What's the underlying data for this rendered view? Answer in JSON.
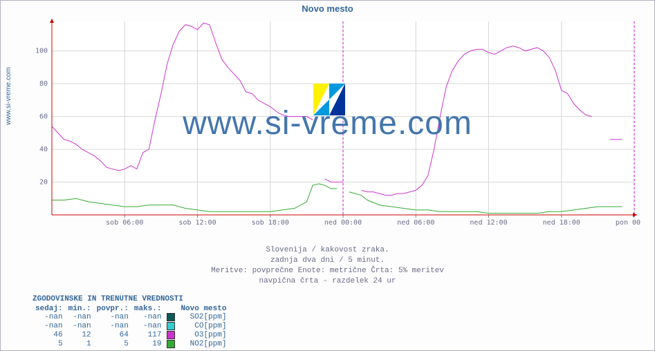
{
  "title": "Novo mesto",
  "y_rotated_label": "www.si-vreme.com",
  "caption_lines": [
    "Slovenija / kakovost zraka.",
    "zadnja dva dni / 5 minut.",
    "Meritve: povprečne  Enote: metrične  Črta: 5% meritev",
    "navpična črta - razdelek 24 ur"
  ],
  "watermark_text": "www.si-vreme.com",
  "chart": {
    "type": "line",
    "background_color": "#ffffff",
    "grid_color": "#d6d6d6",
    "axis_color": "#808080",
    "arrow_color": "#cc0000",
    "xlim_hours": [
      0,
      48
    ],
    "ylim": [
      0,
      118
    ],
    "y_ticks": [
      20,
      40,
      60,
      80,
      100
    ],
    "x_ticks": [
      {
        "h": 6,
        "label": "sob 06:00"
      },
      {
        "h": 12,
        "label": "sob 12:00"
      },
      {
        "h": 18,
        "label": "sob 18:00"
      },
      {
        "h": 24,
        "label": "ned 00:00"
      },
      {
        "h": 30,
        "label": "ned 06:00"
      },
      {
        "h": 36,
        "label": "ned 12:00"
      },
      {
        "h": 42,
        "label": "ned 18:00"
      },
      {
        "h": 48,
        "label": "pon 00:00"
      }
    ],
    "day_divider_hours": [
      24,
      48
    ],
    "day_divider_color": "#cc00cc",
    "tick_label_color": "#6a6a8a",
    "tick_fontsize": 10,
    "series": {
      "O3": {
        "color": "#cc33cc",
        "line_width": 1,
        "points_h_v": [
          [
            0,
            54
          ],
          [
            0.5,
            50
          ],
          [
            1,
            46
          ],
          [
            1.5,
            45
          ],
          [
            2,
            43
          ],
          [
            2.5,
            40
          ],
          [
            3,
            38
          ],
          [
            3.5,
            36
          ],
          [
            4,
            33
          ],
          [
            4.5,
            29
          ],
          [
            5,
            28
          ],
          [
            5.5,
            27
          ],
          [
            6,
            28
          ],
          [
            6.5,
            30
          ],
          [
            7,
            28
          ],
          [
            7.5,
            38
          ],
          [
            8,
            40
          ],
          [
            8.5,
            58
          ],
          [
            9,
            74
          ],
          [
            9.5,
            92
          ],
          [
            10,
            104
          ],
          [
            10.5,
            112
          ],
          [
            11,
            116
          ],
          [
            11.5,
            115
          ],
          [
            12,
            113
          ],
          [
            12.5,
            117
          ],
          [
            13,
            116
          ],
          [
            13.5,
            105
          ],
          [
            14,
            95
          ],
          [
            14.5,
            90
          ],
          [
            15,
            86
          ],
          [
            15.5,
            82
          ],
          [
            16,
            75
          ],
          [
            16.5,
            74
          ],
          [
            17,
            70
          ],
          [
            17.5,
            68
          ],
          [
            18,
            66
          ],
          [
            18.5,
            63
          ],
          [
            19,
            61
          ],
          [
            19.5,
            60
          ],
          [
            20,
            60
          ],
          [
            20.5,
            60
          ],
          [
            21,
            60
          ],
          [
            21.5,
            58
          ]
        ],
        "gap_after": true,
        "points2_h_v": [
          [
            22.5,
            22
          ],
          [
            23,
            20
          ],
          [
            23.5,
            20
          ],
          [
            24,
            20
          ]
        ],
        "gap_after2": true,
        "points3_h_v": [
          [
            25.5,
            15
          ],
          [
            26,
            14
          ],
          [
            26.5,
            14
          ],
          [
            27,
            13
          ],
          [
            27.5,
            12
          ],
          [
            28,
            12
          ],
          [
            28.5,
            13
          ],
          [
            29,
            13
          ],
          [
            29.5,
            14
          ],
          [
            30,
            15
          ],
          [
            30.5,
            18
          ],
          [
            31,
            24
          ],
          [
            31.5,
            40
          ],
          [
            32,
            60
          ],
          [
            32.5,
            78
          ],
          [
            33,
            88
          ],
          [
            33.5,
            94
          ],
          [
            34,
            98
          ],
          [
            34.5,
            100
          ],
          [
            35,
            101
          ],
          [
            35.5,
            101
          ],
          [
            36,
            99
          ],
          [
            36.5,
            98
          ],
          [
            37,
            100
          ],
          [
            37.5,
            102
          ],
          [
            38,
            103
          ],
          [
            38.5,
            102
          ],
          [
            39,
            100
          ],
          [
            39.5,
            101
          ],
          [
            40,
            102
          ],
          [
            40.5,
            100
          ],
          [
            41,
            96
          ],
          [
            41.5,
            88
          ],
          [
            42,
            76
          ],
          [
            42.5,
            74
          ],
          [
            43,
            68
          ],
          [
            43.5,
            64
          ],
          [
            44,
            61
          ],
          [
            44.5,
            60
          ]
        ],
        "gap_after3": true,
        "points4_h_v": [
          [
            46,
            46
          ],
          [
            46.5,
            46
          ],
          [
            47,
            46
          ]
        ]
      },
      "NO2": {
        "color": "#33aa33",
        "line_width": 1,
        "points_h_v": [
          [
            0,
            9
          ],
          [
            1,
            9
          ],
          [
            2,
            10
          ],
          [
            3,
            8
          ],
          [
            4,
            7
          ],
          [
            5,
            6
          ],
          [
            6,
            5
          ],
          [
            7,
            5
          ],
          [
            8,
            6
          ],
          [
            9,
            6
          ],
          [
            10,
            6
          ],
          [
            11,
            4
          ],
          [
            12,
            3
          ],
          [
            13,
            2
          ],
          [
            14,
            2
          ],
          [
            15,
            2
          ],
          [
            16,
            2
          ],
          [
            17,
            2
          ],
          [
            18,
            2
          ],
          [
            19,
            3
          ],
          [
            20,
            4
          ],
          [
            21,
            8
          ],
          [
            21.5,
            18
          ],
          [
            22,
            19
          ],
          [
            22.5,
            18
          ],
          [
            23,
            16
          ],
          [
            23.5,
            16
          ]
        ],
        "gap_after": true,
        "points2_h_v": [
          [
            24.5,
            14
          ],
          [
            25,
            13
          ],
          [
            25.5,
            12
          ],
          [
            26,
            9
          ],
          [
            27,
            6
          ],
          [
            28,
            5
          ],
          [
            29,
            4
          ],
          [
            30,
            3
          ],
          [
            31,
            3
          ],
          [
            32,
            2
          ],
          [
            33,
            2
          ],
          [
            34,
            2
          ],
          [
            35,
            2
          ],
          [
            36,
            1
          ],
          [
            37,
            1
          ],
          [
            38,
            1
          ],
          [
            39,
            1
          ],
          [
            40,
            1
          ],
          [
            41,
            2
          ],
          [
            42,
            2
          ],
          [
            43,
            3
          ],
          [
            44,
            4
          ],
          [
            45,
            5
          ],
          [
            46,
            5
          ],
          [
            47,
            5
          ]
        ]
      }
    }
  },
  "legend": {
    "title": "ZGODOVINSKE IN TRENUTNE VREDNOSTI",
    "header": {
      "c0": "sedaj:",
      "c1": "min.:",
      "c2": "povpr.:",
      "c3": "maks.:",
      "c4": "Novo mesto"
    },
    "rows": [
      {
        "sedaj": "-nan",
        "min": "-nan",
        "povpr": "-nan",
        "maks": "-nan",
        "color": "#0a5a5a",
        "name": "SO2[ppm]"
      },
      {
        "sedaj": "-nan",
        "min": "-nan",
        "povpr": "-nan",
        "maks": "-nan",
        "color": "#33cccc",
        "name": "CO[ppm]"
      },
      {
        "sedaj": "46",
        "min": "12",
        "povpr": "64",
        "maks": "117",
        "color": "#cc33cc",
        "name": "O3[ppm]"
      },
      {
        "sedaj": "5",
        "min": "1",
        "povpr": "5",
        "maks": "19",
        "color": "#33aa33",
        "name": "NO2[ppm]"
      }
    ]
  },
  "watermark_logo_colors": {
    "a": "#fff200",
    "b": "#0099dd",
    "c": "#003399"
  }
}
